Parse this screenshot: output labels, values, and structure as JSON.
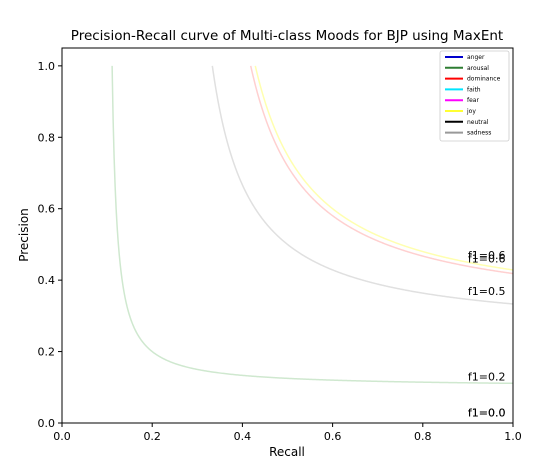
{
  "chart_data": {
    "type": "line",
    "title": "Precision-Recall curve of Multi-class Moods for BJP using MaxEnt",
    "xlabel": "Recall",
    "ylabel": "Precision",
    "xlim": [
      0.0,
      1.0
    ],
    "ylim": [
      0.0,
      1.05
    ],
    "xticks": [
      "0.0",
      "0.2",
      "0.4",
      "0.6",
      "0.8",
      "1.0"
    ],
    "yticks": [
      "0.0",
      "0.2",
      "0.4",
      "0.6",
      "0.8",
      "1.0"
    ],
    "grid": false,
    "legend_position": "top-right",
    "series": [
      {
        "name": "anger",
        "color": "#0000cc"
      },
      {
        "name": "arousal",
        "color": "#2e7d32"
      },
      {
        "name": "dominance",
        "color": "#ff0000"
      },
      {
        "name": "faith",
        "color": "#00e5ff"
      },
      {
        "name": "fear",
        "color": "#ff00ff"
      },
      {
        "name": "joy",
        "color": "#ffff33"
      },
      {
        "name": "neutral",
        "color": "#000000"
      },
      {
        "name": "sadness",
        "color": "#999999"
      }
    ],
    "iso_f1_curves": [
      {
        "label": "f1=0.6",
        "f1": 0.6,
        "color": "#ffffb0",
        "label_y": 0.47
      },
      {
        "label": "f1=0.6",
        "f1": 0.59,
        "color": "#ffd0d0",
        "label_y": 0.46
      },
      {
        "label": "f1=0.5",
        "f1": 0.5,
        "color": "#e0e0e0",
        "label_y": 0.37
      },
      {
        "label": "f1=0.2",
        "f1": 0.2,
        "color": "#cfe8cf",
        "label_y": 0.13
      },
      {
        "label": "f1=0.0",
        "f1": 0.0,
        "color": "#cccccc",
        "label_y": 0.03
      },
      {
        "label": "f1=0.0",
        "f1": 0.0,
        "color": "#cccccc",
        "label_y": 0.03
      }
    ]
  }
}
